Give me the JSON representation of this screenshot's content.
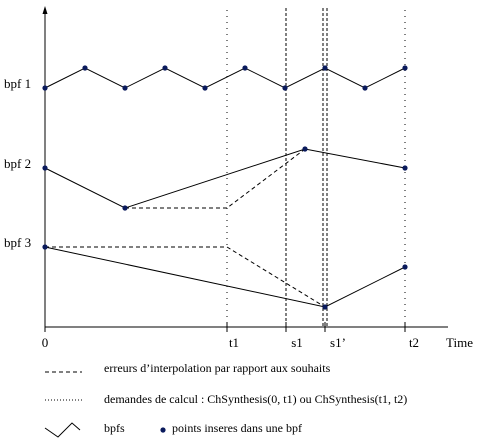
{
  "axis": {
    "time_label": "Time",
    "ticks": [
      "0",
      "t1",
      "s1",
      "s1’",
      "t2"
    ]
  },
  "bpf_labels": [
    "bpf 1",
    "bpf 2",
    "bpf 3"
  ],
  "legend": {
    "dashed": "erreurs d’interpolation par rapport  aux  souhaits",
    "dotted": "demandes de calcul : ChSynthesis(0, t1) ou ChSynthesis(t1, t2)",
    "bpfs": "bpfs",
    "points": "points inseres dans une bpf"
  }
}
